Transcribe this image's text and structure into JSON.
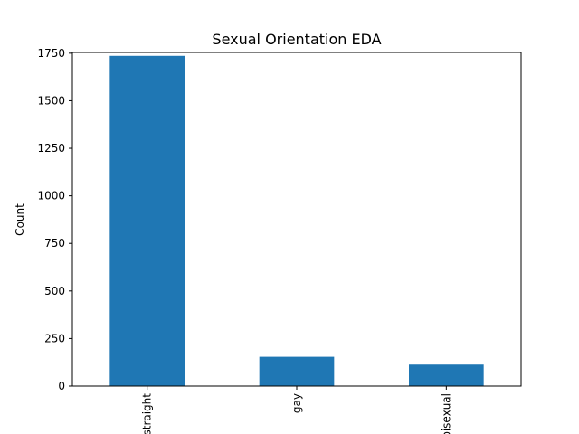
{
  "chart_data": {
    "type": "bar",
    "title": "Sexual Orientation EDA",
    "xlabel": "",
    "ylabel": "Count",
    "categories": [
      "straight",
      "gay",
      "bisexual"
    ],
    "values": [
      1736,
      154,
      113
    ],
    "ylim": [
      0,
      1754
    ],
    "yticks": [
      0,
      250,
      500,
      750,
      1000,
      1250,
      1500,
      1750
    ],
    "grid": false,
    "legend": "none",
    "bar_color": "#1f77b4"
  }
}
